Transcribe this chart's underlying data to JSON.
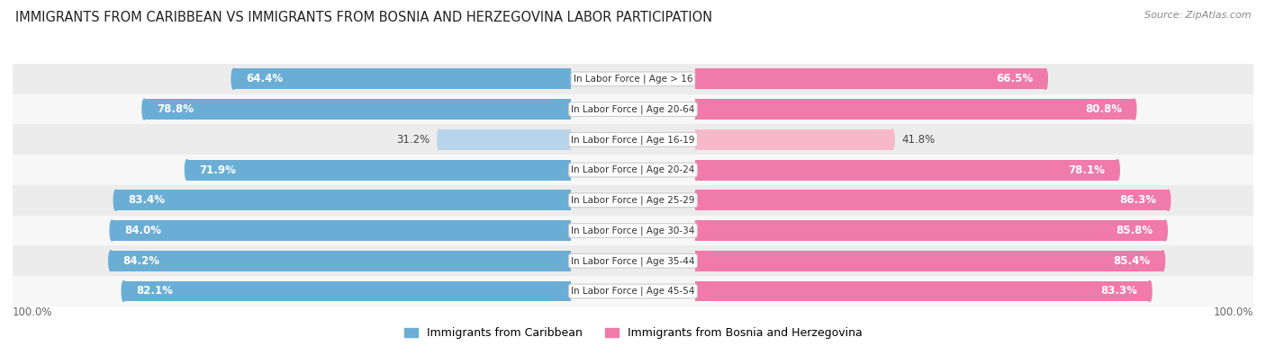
{
  "title": "IMMIGRANTS FROM CARIBBEAN VS IMMIGRANTS FROM BOSNIA AND HERZEGOVINA LABOR PARTICIPATION",
  "source": "Source: ZipAtlas.com",
  "categories": [
    "In Labor Force | Age > 16",
    "In Labor Force | Age 20-64",
    "In Labor Force | Age 16-19",
    "In Labor Force | Age 20-24",
    "In Labor Force | Age 25-29",
    "In Labor Force | Age 30-34",
    "In Labor Force | Age 35-44",
    "In Labor Force | Age 45-54"
  ],
  "caribbean_values": [
    64.4,
    78.8,
    31.2,
    71.9,
    83.4,
    84.0,
    84.2,
    82.1
  ],
  "bosnia_values": [
    66.5,
    80.8,
    41.8,
    78.1,
    86.3,
    85.8,
    85.4,
    83.3
  ],
  "caribbean_color": "#6aaed6",
  "bosnia_color": "#f07aaa",
  "caribbean_light_color": "#b8d4eb",
  "bosnia_light_color": "#f7b8cc",
  "row_colors": [
    "#ececec",
    "#f7f7f7"
  ],
  "title_fontsize": 10.5,
  "bar_label_fontsize": 8.5,
  "category_fontsize": 7.5,
  "legend_fontsize": 9,
  "max_value": 100.0,
  "low_thresh": 50,
  "axis_label": "100.0%"
}
